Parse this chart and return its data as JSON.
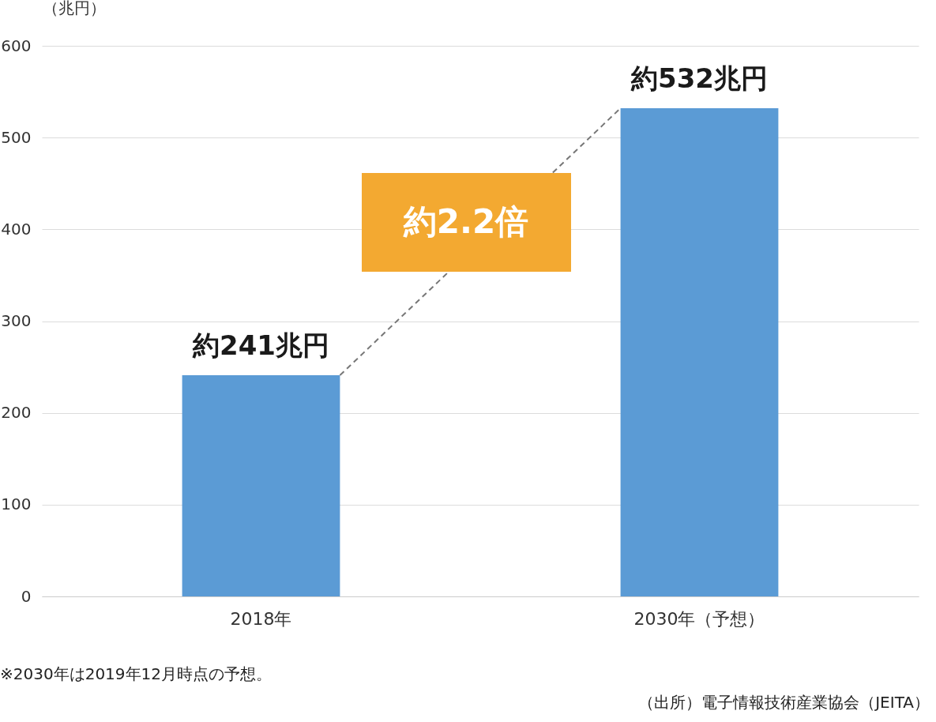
{
  "chart_data": {
    "type": "bar",
    "ylabel": "（兆円）",
    "categories": [
      "2018年",
      "2030年（予想）"
    ],
    "values": [
      241,
      532
    ],
    "color": "#5b9bd5",
    "value_labels": [
      "約241兆円",
      "約532兆円"
    ],
    "ylim": [
      0,
      600
    ],
    "yticks": [
      0,
      100,
      200,
      300,
      400,
      500,
      600
    ],
    "grid": "y",
    "annotations": [
      "約2.2倍",
      "※2030年は2019年12月時点の予想。",
      "（出所）電子情報技術産業協会（JEITA）"
    ]
  }
}
